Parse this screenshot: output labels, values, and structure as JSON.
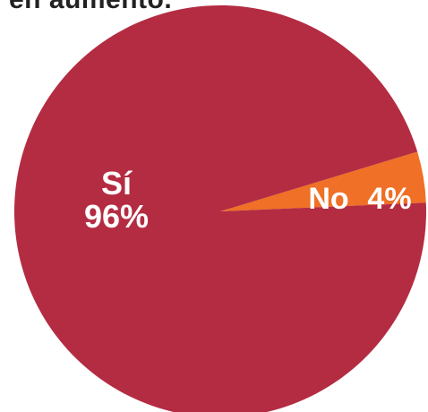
{
  "caption": "en aumento.",
  "chart_data": {
    "type": "pie",
    "title": "",
    "slices": [
      {
        "label": "Sí",
        "value": 96,
        "value_label": "96%",
        "color": "#b42c42"
      },
      {
        "label": "No",
        "value": 4,
        "value_label": "4%",
        "color": "#ef7026"
      }
    ],
    "legend": "none"
  }
}
